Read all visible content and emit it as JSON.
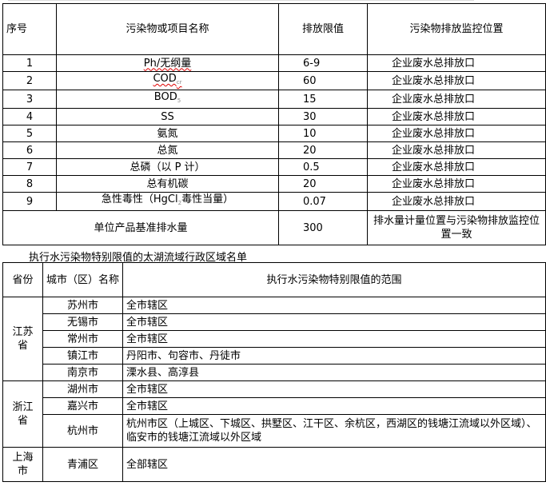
{
  "table1": {
    "headers": [
      "序号",
      "污染物或项目名称",
      "排放限值",
      "污染物排放监控位置"
    ],
    "rows": [
      {
        "no": "1",
        "name": "Ph/无纲量",
        "limit": "6-9",
        "location": "企业废水总排放口"
      },
      {
        "no": "2",
        "name": "COD",
        "name_sub": "cr",
        "limit": "60",
        "location": "企业废水总排放口"
      },
      {
        "no": "3",
        "name": "BOD",
        "name_sub": "5",
        "limit": "15",
        "location": "企业废水总排放口"
      },
      {
        "no": "4",
        "name": "SS",
        "limit": "30",
        "location": "企业废水总排放口"
      },
      {
        "no": "5",
        "name": "氨氮",
        "limit": "10",
        "location": "企业废水总排放口"
      },
      {
        "no": "6",
        "name": "总氮",
        "limit": "20",
        "location": "企业废水总排放口"
      },
      {
        "no": "7",
        "name": "总磷（以 P 计）",
        "limit": "0.5",
        "location": "企业废水总排放口"
      },
      {
        "no": "8",
        "name": "总有机碳",
        "limit": "20",
        "location": "企业废水总排放口"
      },
      {
        "no": "9",
        "name_pre": "急性毒性（HgCl",
        "name_sub": "2",
        "name_post": "毒性当量）",
        "limit": "0.07",
        "location": "企业废水总排放口"
      }
    ],
    "footer": {
      "label": "单位产品基准排水量",
      "value": "300",
      "location": "排水量计量位置与污染物排放监控位置一致"
    }
  },
  "table2": {
    "title": "执行水污染物特别限值的太湖流域行政区域名单",
    "headers": [
      "省份",
      "城市（区）名称",
      "执行水污染物特别限值的范围"
    ],
    "provinces": [
      {
        "name": "江苏省",
        "cities": [
          {
            "city": "苏州市",
            "scope": "全市辖区"
          },
          {
            "city": "无锡市",
            "scope": "全市辖区"
          },
          {
            "city": "常州市",
            "scope": "全市辖区"
          },
          {
            "city": "镇江市",
            "scope": "丹阳市、句容市、丹徒市"
          },
          {
            "city": "南京市",
            "scope": "溧水县、高淳县"
          }
        ]
      },
      {
        "name": "浙江省",
        "cities": [
          {
            "city": "湖州市",
            "scope": "全市辖区"
          },
          {
            "city": "嘉兴市",
            "scope": "全市辖区"
          },
          {
            "city": "杭州市",
            "scope": "杭州市区（上城区、下城区、拱墅区、江干区、余杭区，西湖区的钱塘江流域以外区域）、临安市的钱塘江流域以外区域"
          }
        ]
      },
      {
        "name": "上海市",
        "cities": [
          {
            "city": "青浦区",
            "scope": "全部辖区"
          }
        ]
      }
    ]
  }
}
